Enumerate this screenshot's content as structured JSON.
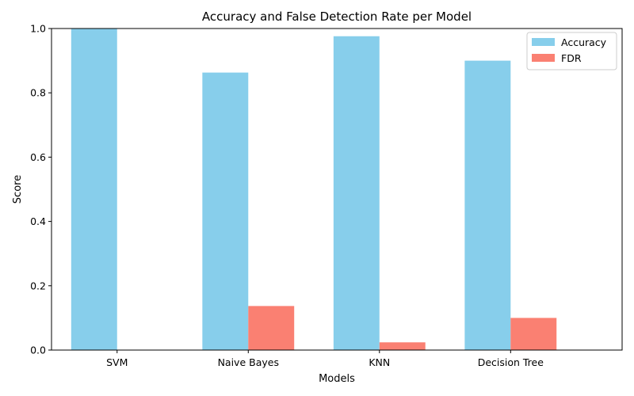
{
  "chart_data": {
    "type": "bar",
    "title": "Accuracy and False Detection Rate per Model",
    "xlabel": "Models",
    "ylabel": "Score",
    "categories": [
      "SVM",
      "Naive Bayes",
      "KNN",
      "Decision Tree"
    ],
    "series": [
      {
        "name": "Accuracy",
        "color": "#87ceeb",
        "values": [
          1.0,
          0.863,
          0.976,
          0.9
        ]
      },
      {
        "name": "FDR",
        "color": "#fa8072",
        "values": [
          0.0,
          0.137,
          0.024,
          0.1
        ]
      }
    ],
    "ylim": [
      0,
      1.0
    ],
    "yticks": [
      "0.0",
      "0.2",
      "0.4",
      "0.6",
      "0.8",
      "1.0"
    ],
    "grid": false,
    "legend_position": "top-right"
  }
}
